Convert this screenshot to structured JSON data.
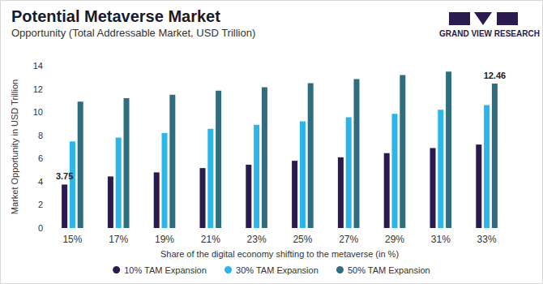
{
  "chart_data": {
    "type": "bar",
    "title": "Potential Metaverse Market",
    "subtitle": "Opportunity (Total Addressable Market, USD Trillion)",
    "logo": "GRAND VIEW RESEARCH",
    "x_label": "Share of the digital economy shifting to the metaverse (in %)",
    "y_label": "Market Opportunity in USD Trillion",
    "categories": [
      "15%",
      "17%",
      "19%",
      "21%",
      "23%",
      "25%",
      "27%",
      "29%",
      "31%",
      "33%"
    ],
    "series": [
      {
        "name": "10% TAM Expansion",
        "color": "#2b1a4e",
        "values": [
          3.75,
          4.45,
          4.8,
          5.17,
          5.46,
          5.8,
          6.1,
          6.46,
          6.9,
          7.2
        ],
        "value_labels": [
          "3.75",
          null,
          null,
          null,
          null,
          null,
          null,
          null,
          null,
          null
        ]
      },
      {
        "name": "30% TAM Expansion",
        "color": "#2bb5e8",
        "values": [
          7.47,
          7.8,
          8.2,
          8.55,
          8.9,
          9.2,
          9.55,
          9.85,
          10.2,
          10.6
        ]
      },
      {
        "name": "50% TAM Expansion",
        "color": "#2e6e7e",
        "values": [
          10.9,
          11.2,
          11.5,
          11.85,
          12.15,
          12.5,
          12.85,
          13.2,
          13.5,
          12.46
        ],
        "value_labels": [
          null,
          null,
          null,
          null,
          null,
          null,
          null,
          null,
          null,
          "12.46"
        ]
      }
    ],
    "ylim": [
      0,
      14
    ],
    "yticks": [
      0,
      2,
      4,
      6,
      8,
      10,
      12,
      14
    ],
    "grid": false,
    "legend": "bottom"
  }
}
